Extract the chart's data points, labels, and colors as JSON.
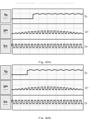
{
  "header_text": "Patent Application Publication    Jul. 14, 2011  Sheet 48 of 104    US 2011/0163414 A1",
  "fig_a_label": "Fig. 42a",
  "fig_b_label": "Fig. 42b",
  "background_color": "#ffffff",
  "grid_color": "#d0d0d0",
  "signal_color": "#222222",
  "border_color": "#666666",
  "label_bg": "#e8e8e8"
}
